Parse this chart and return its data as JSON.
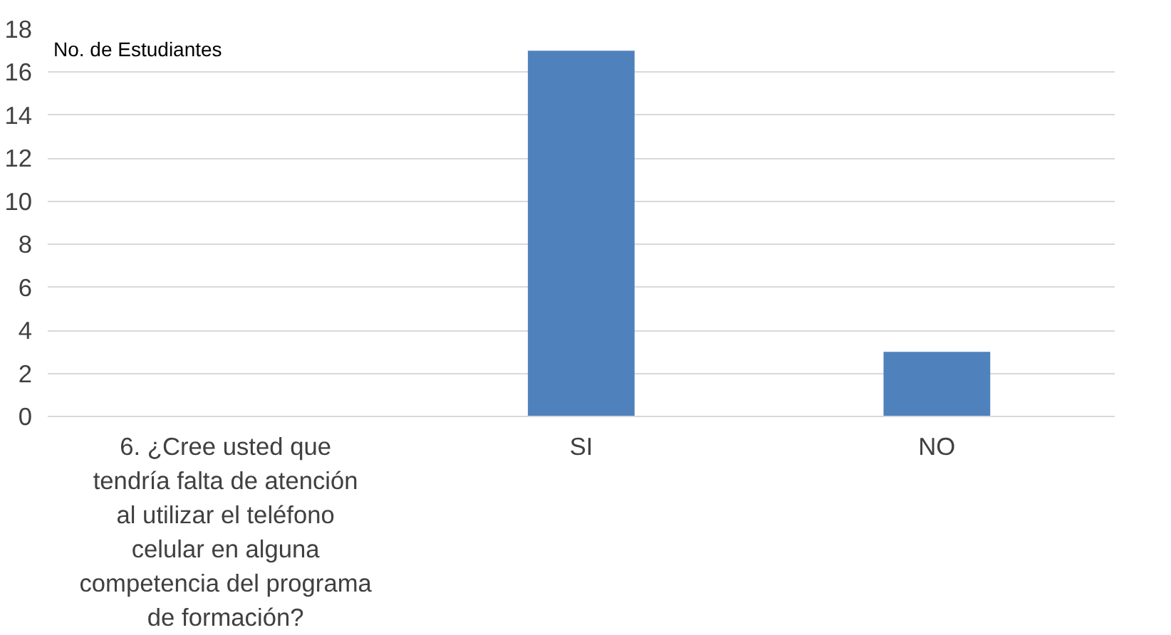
{
  "chart_data": {
    "type": "bar",
    "ylabel": "No. de Estudiantes",
    "categories": [
      "6. ¿Cree usted que tendría falta de atención al utilizar el teléfono celular en alguna competencia del programa de formación?",
      "SI",
      "NO"
    ],
    "values": [
      null,
      17,
      3
    ],
    "color": "#4f81bd",
    "ylim": [
      0,
      18
    ],
    "yticks": [
      0,
      2,
      4,
      6,
      8,
      10,
      12,
      14,
      16,
      18
    ],
    "grid": "y"
  }
}
